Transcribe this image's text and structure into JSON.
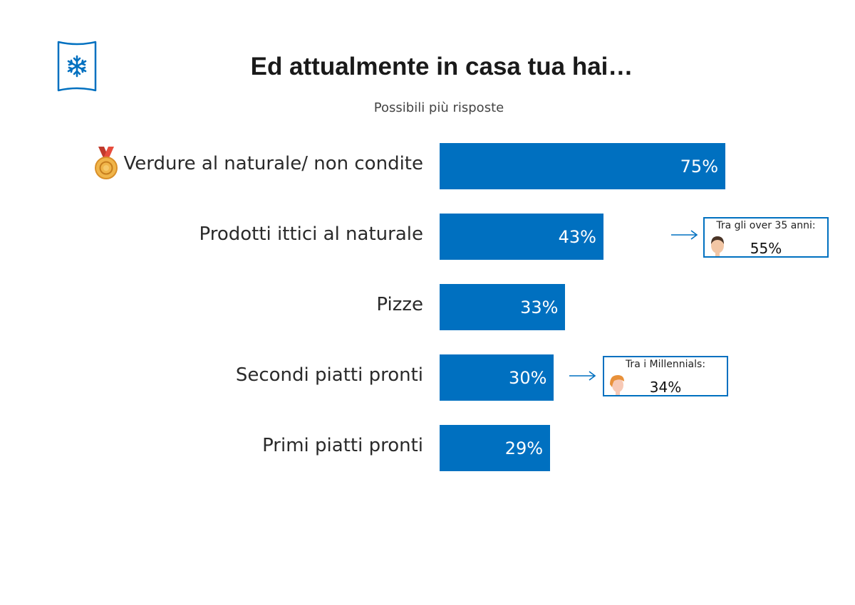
{
  "header": {
    "title": "Ed attualmente in casa tua hai…",
    "subtitle": "Possibili più risposte",
    "logo_icon": "snowflake-icon"
  },
  "chart_data": {
    "type": "bar",
    "orientation": "horizontal",
    "title": "Ed attualmente in casa tua hai…",
    "subtitle": "Possibili più risposte",
    "categories": [
      "Verdure al naturale/ non condite",
      "Prodotti ittici al naturale",
      "Pizze",
      "Secondi piatti pronti",
      "Primi piatti pronti"
    ],
    "values": [
      75,
      43,
      33,
      30,
      29
    ],
    "value_labels": [
      "75%",
      "43%",
      "33%",
      "30%",
      "29%"
    ],
    "xlim": [
      0,
      100
    ],
    "unit": "%",
    "bar_color": "#0070c0",
    "grid": false,
    "top_item_icon": "medal-icon",
    "annotations": [
      {
        "category_index": 1,
        "label": "Tra gli over 35 anni:",
        "value": "55%",
        "icon": "man-face-icon"
      },
      {
        "category_index": 3,
        "label": "Tra i Millennials:",
        "value": "34%",
        "icon": "young-face-icon"
      }
    ]
  },
  "colors": {
    "accent": "#0070c0",
    "text": "#2a2a2a",
    "bar_text": "#ffffff"
  }
}
